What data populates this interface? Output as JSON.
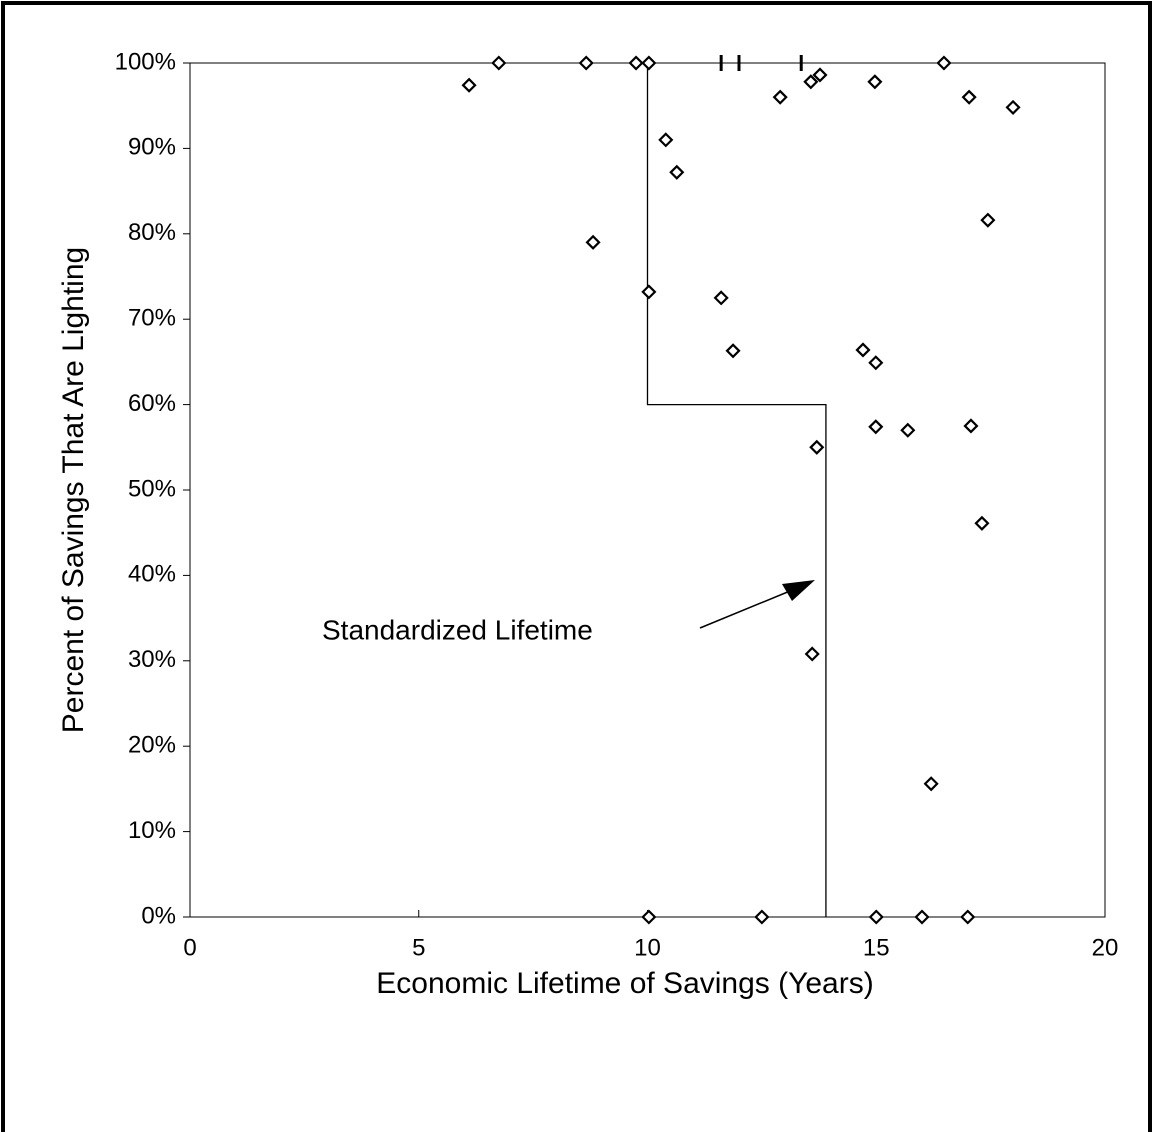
{
  "chart_data": {
    "type": "scatter",
    "xlabel": "Economic Lifetime of Savings (Years)",
    "ylabel": "Percent of Savings That Are Lighting",
    "annotation": "Standardized Lifetime",
    "xlim": [
      0,
      20
    ],
    "xticks": [
      0,
      5,
      10,
      15,
      20
    ],
    "ylim": [
      0,
      100
    ],
    "yticks": [
      {
        "value": 0,
        "label": "0%"
      },
      {
        "value": 10,
        "label": "10%"
      },
      {
        "value": 20,
        "label": "20%"
      },
      {
        "value": 30,
        "label": "30%"
      },
      {
        "value": 40,
        "label": "40%"
      },
      {
        "value": 50,
        "label": "50%"
      },
      {
        "value": 60,
        "label": "60%"
      },
      {
        "value": 70,
        "label": "70%"
      },
      {
        "value": 80,
        "label": "80%"
      },
      {
        "value": 90,
        "label": "90%"
      },
      {
        "value": 100,
        "label": "100%"
      }
    ],
    "series": [
      {
        "marker": "diamond",
        "color": "#000000",
        "x": [
          6.1,
          6.75,
          8.66,
          9.75,
          10.03,
          13.77,
          13.57,
          14.97,
          16.48,
          12.9,
          17.03,
          17.99,
          10.4,
          10.64,
          17.44,
          8.81,
          10.03,
          11.61,
          11.87,
          14.71,
          14.99,
          14.99,
          15.69,
          17.07,
          13.7,
          17.31,
          13.6,
          16.2,
          10.03,
          12.5,
          15.0,
          16.0,
          17.0
        ],
        "values": [
          97.4,
          100,
          100,
          100,
          100,
          98.6,
          97.8,
          97.8,
          100,
          96.0,
          96.0,
          94.8,
          91.0,
          87.2,
          81.6,
          79.0,
          73.2,
          72.5,
          66.3,
          66.4,
          64.9,
          57.4,
          57.0,
          57.5,
          55.0,
          46.1,
          30.8,
          15.6,
          0,
          0,
          0,
          0,
          0
        ]
      },
      {
        "marker": "dash",
        "color": "#000000",
        "x": [
          11.61,
          12.0,
          13.36
        ],
        "values": [
          100,
          100,
          100
        ]
      },
      {
        "marker": "step",
        "color": "#000000",
        "x": [
          10,
          10,
          13.9,
          13.9
        ],
        "values": [
          100,
          60,
          60,
          0
        ]
      }
    ]
  }
}
